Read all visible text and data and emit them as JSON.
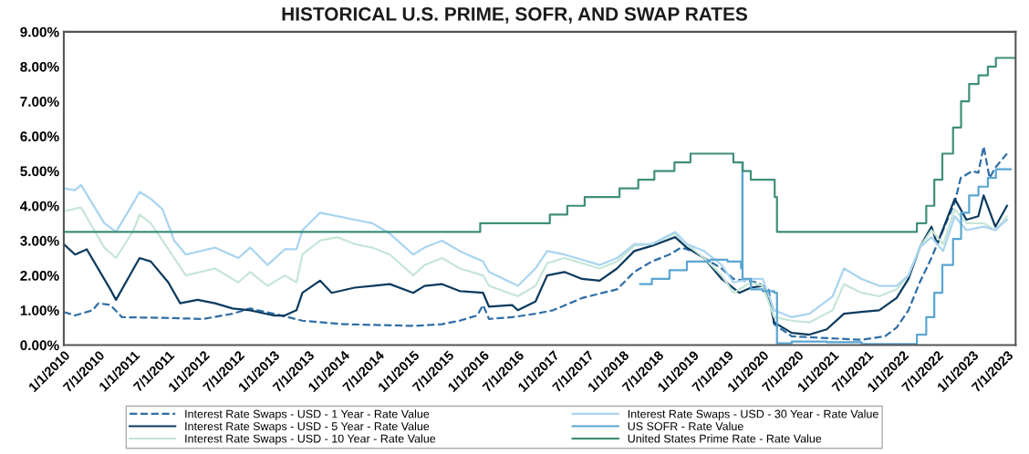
{
  "chart_data": {
    "type": "line",
    "title": "HISTORICAL U.S. PRIME, SOFR, AND SWAP RATES",
    "xlim": [
      "2010-01-01",
      "2023-08-15"
    ],
    "xticks": [
      {
        "value": "2010-01-01",
        "label": "1/1/2010"
      },
      {
        "value": "2010-07-01",
        "label": "7/1/2010"
      },
      {
        "value": "2011-01-01",
        "label": "1/1/2011"
      },
      {
        "value": "2011-07-01",
        "label": "7/1/2011"
      },
      {
        "value": "2012-01-01",
        "label": "1/1/2012"
      },
      {
        "value": "2012-07-01",
        "label": "7/1/2012"
      },
      {
        "value": "2013-01-01",
        "label": "1/1/2013"
      },
      {
        "value": "2013-07-01",
        "label": "7/1/2013"
      },
      {
        "value": "2014-01-01",
        "label": "1/1/2014"
      },
      {
        "value": "2014-07-01",
        "label": "7/1/2014"
      },
      {
        "value": "2015-01-01",
        "label": "1/1/2015"
      },
      {
        "value": "2015-07-01",
        "label": "7/1/2015"
      },
      {
        "value": "2016-01-01",
        "label": "1/1/2016"
      },
      {
        "value": "2016-07-01",
        "label": "7/1/2016"
      },
      {
        "value": "2017-01-01",
        "label": "1/1/2017"
      },
      {
        "value": "2017-07-01",
        "label": "7/1/2017"
      },
      {
        "value": "2018-01-01",
        "label": "1/1/2018"
      },
      {
        "value": "2018-07-01",
        "label": "7/1/2018"
      },
      {
        "value": "2019-01-01",
        "label": "1/1/2019"
      },
      {
        "value": "2019-07-01",
        "label": "7/1/2019"
      },
      {
        "value": "2020-01-01",
        "label": "1/1/2020"
      },
      {
        "value": "2020-07-01",
        "label": "7/1/2020"
      },
      {
        "value": "2021-01-01",
        "label": "1/1/2021"
      },
      {
        "value": "2021-07-01",
        "label": "7/1/2021"
      },
      {
        "value": "2022-01-01",
        "label": "1/1/2022"
      },
      {
        "value": "2022-07-01",
        "label": "7/1/2022"
      },
      {
        "value": "2023-01-01",
        "label": "1/1/2023"
      },
      {
        "value": "2023-07-01",
        "label": "7/1/2023"
      }
    ],
    "ylim": [
      0,
      9
    ],
    "yticks": [
      {
        "value": 0,
        "label": "0.00%"
      },
      {
        "value": 1,
        "label": "1.00%"
      },
      {
        "value": 2,
        "label": "2.00%"
      },
      {
        "value": 3,
        "label": "3.00%"
      },
      {
        "value": 4,
        "label": "4.00%"
      },
      {
        "value": 5,
        "label": "5.00%"
      },
      {
        "value": 6,
        "label": "6.00%"
      },
      {
        "value": 7,
        "label": "7.00%"
      },
      {
        "value": 8,
        "label": "8.00%"
      },
      {
        "value": 9,
        "label": "9.00%"
      }
    ],
    "grid": false,
    "legend": "bottom",
    "marker": "none",
    "series": [
      {
        "name": "Interest Rate Swaps - USD - 1 Year - Rate Value",
        "color": "#2e6ea6",
        "line_style": "dashed",
        "x": [
          "2010-01",
          "2010-03",
          "2010-06",
          "2010-07",
          "2010-09",
          "2010-11",
          "2011-06",
          "2012-01",
          "2012-06",
          "2012-09",
          "2013-01",
          "2013-06",
          "2014-01",
          "2014-06",
          "2015-01",
          "2015-06",
          "2015-09",
          "2015-12",
          "2016-01",
          "2016-02",
          "2016-06",
          "2016-10",
          "2017-01",
          "2017-06",
          "2017-12",
          "2018-03",
          "2018-06",
          "2018-09",
          "2018-11",
          "2019-01",
          "2019-03",
          "2019-06",
          "2019-08",
          "2019-12",
          "2020-02",
          "2020-03",
          "2020-06",
          "2020-12",
          "2021-06",
          "2021-10",
          "2021-12",
          "2022-02",
          "2022-04",
          "2022-06",
          "2022-08",
          "2022-10",
          "2022-11",
          "2023-01",
          "2023-02",
          "2023-03",
          "2023-04",
          "2023-05",
          "2023-07"
        ],
        "values": [
          0.95,
          0.85,
          1.0,
          1.2,
          1.15,
          0.8,
          0.78,
          0.75,
          0.9,
          1.05,
          0.9,
          0.7,
          0.6,
          0.58,
          0.55,
          0.6,
          0.7,
          0.85,
          1.15,
          0.75,
          0.8,
          0.9,
          1.0,
          1.35,
          1.6,
          2.1,
          2.4,
          2.6,
          2.8,
          2.7,
          2.5,
          2.2,
          1.9,
          1.8,
          1.6,
          0.6,
          0.25,
          0.2,
          0.15,
          0.25,
          0.5,
          1.0,
          1.8,
          2.5,
          3.3,
          4.1,
          4.8,
          5.0,
          4.95,
          5.7,
          4.8,
          5.1,
          5.5
        ]
      },
      {
        "name": "Interest Rate Swaps - USD - 5 Year - Rate Value",
        "color": "#0b3a5e",
        "line_style": "solid",
        "x": [
          "2010-01",
          "2010-03",
          "2010-05",
          "2010-09",
          "2010-10",
          "2011-01",
          "2011-02",
          "2011-04",
          "2011-07",
          "2011-09",
          "2011-12",
          "2012-03",
          "2012-06",
          "2012-09",
          "2013-01",
          "2013-03",
          "2013-05",
          "2013-06",
          "2013-09",
          "2013-11",
          "2014-03",
          "2014-06",
          "2014-09",
          "2015-01",
          "2015-03",
          "2015-06",
          "2015-09",
          "2016-01",
          "2016-02",
          "2016-06",
          "2016-07",
          "2016-10",
          "2016-12",
          "2017-03",
          "2017-06",
          "2017-09",
          "2017-12",
          "2018-03",
          "2018-06",
          "2018-10",
          "2018-12",
          "2019-03",
          "2019-06",
          "2019-09",
          "2019-11",
          "2020-01",
          "2020-02",
          "2020-03",
          "2020-06",
          "2020-09",
          "2020-12",
          "2021-03",
          "2021-06",
          "2021-09",
          "2021-12",
          "2022-02",
          "2022-04",
          "2022-06",
          "2022-07",
          "2022-10",
          "2022-12",
          "2023-02",
          "2023-03",
          "2023-05",
          "2023-07"
        ],
        "values": [
          2.9,
          2.6,
          2.75,
          1.6,
          1.3,
          2.2,
          2.5,
          2.4,
          1.8,
          1.2,
          1.3,
          1.2,
          1.05,
          1.0,
          0.85,
          0.85,
          1.0,
          1.5,
          1.85,
          1.5,
          1.65,
          1.7,
          1.75,
          1.5,
          1.7,
          1.75,
          1.55,
          1.5,
          1.1,
          1.15,
          1.0,
          1.25,
          2.0,
          2.1,
          1.9,
          1.85,
          2.2,
          2.7,
          2.85,
          3.1,
          2.8,
          2.5,
          1.9,
          1.5,
          1.65,
          1.7,
          1.4,
          0.65,
          0.35,
          0.3,
          0.45,
          0.9,
          0.95,
          1.0,
          1.35,
          1.9,
          2.8,
          3.4,
          2.9,
          4.2,
          3.6,
          3.7,
          4.3,
          3.4,
          4.0
        ]
      },
      {
        "name": "Interest Rate Swaps - USD - 10 Year - Rate Value",
        "color": "#c6e6d6",
        "line_style": "solid",
        "x": [
          "2010-01",
          "2010-04",
          "2010-08",
          "2010-10",
          "2011-01",
          "2011-02",
          "2011-04",
          "2011-08",
          "2011-10",
          "2012-03",
          "2012-07",
          "2012-09",
          "2012-12",
          "2013-03",
          "2013-05",
          "2013-06",
          "2013-09",
          "2013-12",
          "2014-03",
          "2014-06",
          "2014-09",
          "2015-01",
          "2015-03",
          "2015-06",
          "2015-09",
          "2016-01",
          "2016-02",
          "2016-07",
          "2016-10",
          "2016-12",
          "2017-03",
          "2017-09",
          "2017-12",
          "2018-03",
          "2018-06",
          "2018-10",
          "2018-12",
          "2019-03",
          "2019-06",
          "2019-08",
          "2019-11",
          "2020-01",
          "2020-03",
          "2020-06",
          "2020-09",
          "2021-01",
          "2021-03",
          "2021-06",
          "2021-09",
          "2021-12",
          "2022-02",
          "2022-04",
          "2022-06",
          "2022-08",
          "2022-10",
          "2022-12",
          "2023-03",
          "2023-05",
          "2023-07"
        ],
        "values": [
          3.85,
          3.95,
          2.8,
          2.5,
          3.3,
          3.75,
          3.5,
          2.5,
          2.0,
          2.2,
          1.8,
          2.1,
          1.7,
          2.0,
          1.8,
          2.6,
          3.0,
          3.1,
          2.9,
          2.8,
          2.6,
          2.0,
          2.3,
          2.5,
          2.2,
          2.0,
          1.7,
          1.4,
          1.7,
          2.35,
          2.5,
          2.2,
          2.4,
          2.85,
          2.9,
          3.2,
          2.9,
          2.5,
          2.0,
          1.5,
          1.8,
          1.7,
          0.8,
          0.7,
          0.65,
          1.0,
          1.75,
          1.5,
          1.4,
          1.6,
          2.0,
          2.8,
          3.3,
          2.9,
          3.9,
          3.5,
          3.5,
          3.3,
          3.7
        ]
      },
      {
        "name": "Interest Rate Swaps - USD - 30 Year - Rate Value",
        "color": "#a9d4f0",
        "line_style": "solid",
        "x": [
          "2010-01",
          "2010-03",
          "2010-04",
          "2010-08",
          "2010-10",
          "2011-01",
          "2011-02",
          "2011-04",
          "2011-06",
          "2011-08",
          "2011-10",
          "2012-03",
          "2012-07",
          "2012-09",
          "2012-12",
          "2013-03",
          "2013-05",
          "2013-06",
          "2013-09",
          "2013-12",
          "2014-03",
          "2014-06",
          "2014-09",
          "2015-01",
          "2015-03",
          "2015-06",
          "2015-09",
          "2016-01",
          "2016-02",
          "2016-07",
          "2016-10",
          "2016-12",
          "2017-03",
          "2017-09",
          "2017-12",
          "2018-03",
          "2018-06",
          "2018-10",
          "2018-12",
          "2019-03",
          "2019-06",
          "2019-08",
          "2019-11",
          "2020-01",
          "2020-03",
          "2020-06",
          "2020-09",
          "2021-01",
          "2021-03",
          "2021-06",
          "2021-09",
          "2021-12",
          "2022-02",
          "2022-04",
          "2022-06",
          "2022-08",
          "2022-10",
          "2022-12",
          "2023-03",
          "2023-05",
          "2023-07"
        ],
        "values": [
          4.5,
          4.45,
          4.6,
          3.5,
          3.25,
          4.1,
          4.4,
          4.2,
          3.9,
          3.0,
          2.6,
          2.8,
          2.5,
          2.8,
          2.3,
          2.75,
          2.75,
          3.3,
          3.8,
          3.7,
          3.6,
          3.5,
          3.2,
          2.6,
          2.8,
          3.0,
          2.7,
          2.4,
          2.1,
          1.7,
          2.2,
          2.7,
          2.6,
          2.3,
          2.5,
          2.9,
          2.9,
          3.25,
          2.9,
          2.7,
          2.3,
          1.8,
          1.9,
          1.9,
          1.0,
          0.8,
          0.9,
          1.4,
          2.2,
          1.9,
          1.7,
          1.7,
          2.0,
          2.8,
          3.1,
          2.7,
          3.7,
          3.3,
          3.4,
          3.3,
          3.6
        ]
      },
      {
        "name": "US SOFR - Rate Value",
        "color": "#5aa5d2",
        "type": "step",
        "x": [
          "2018-04",
          "2018-06",
          "2018-09",
          "2018-12",
          "2019-01",
          "2019-04",
          "2019-07",
          "2019-09-10",
          "2019-09-17",
          "2019-09-18",
          "2019-11",
          "2020-01",
          "2020-03-01",
          "2020-03-16",
          "2020-06",
          "2020-12",
          "2021-06",
          "2022-03-17",
          "2022-05-05",
          "2022-06-16",
          "2022-07-28",
          "2022-09-22",
          "2022-11-03",
          "2022-12-15",
          "2023-02-02",
          "2023-03-23",
          "2023-05-04",
          "2023-07-20"
        ],
        "values": [
          1.75,
          1.9,
          2.15,
          2.4,
          2.4,
          2.45,
          2.4,
          2.2,
          5.25,
          1.9,
          1.6,
          1.55,
          1.5,
          0.05,
          0.1,
          0.08,
          0.03,
          0.3,
          0.8,
          1.5,
          2.3,
          3.05,
          3.8,
          4.3,
          4.55,
          4.8,
          5.05,
          5.05
        ]
      },
      {
        "name": "United States Prime Rate - Rate Value",
        "color": "#3f8f7a",
        "type": "step",
        "x": [
          "2010-01-01",
          "2015-12-17",
          "2016-12-15",
          "2017-03-16",
          "2017-06-15",
          "2017-12-14",
          "2018-03-22",
          "2018-06-14",
          "2018-09-27",
          "2018-12-20",
          "2019-08-01",
          "2019-09-19",
          "2019-10-31",
          "2020-03-04",
          "2020-03-16",
          "2022-03-17",
          "2022-05-05",
          "2022-06-16",
          "2022-07-28",
          "2022-09-22",
          "2022-11-03",
          "2022-12-15",
          "2023-02-02",
          "2023-03-23",
          "2023-05-04",
          "2023-08-15"
        ],
        "values": [
          3.25,
          3.5,
          3.75,
          4.0,
          4.25,
          4.5,
          4.75,
          5.0,
          5.25,
          5.5,
          5.25,
          5.0,
          4.75,
          4.25,
          3.25,
          3.5,
          4.0,
          4.75,
          5.5,
          6.25,
          7.0,
          7.5,
          7.75,
          8.0,
          8.25,
          8.25
        ]
      }
    ]
  }
}
